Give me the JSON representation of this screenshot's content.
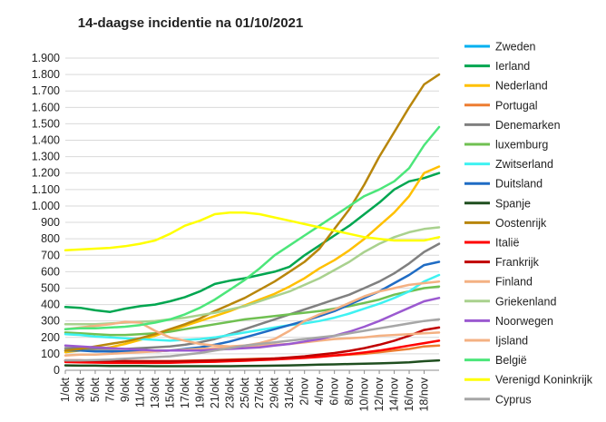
{
  "chart_data": {
    "type": "line",
    "title": "14-daagse incidentie na 01/10/2021",
    "xlabel": "",
    "ylabel": "",
    "ylim": [
      0,
      1900
    ],
    "yticks": [
      0,
      100,
      200,
      300,
      400,
      500,
      600,
      700,
      800,
      900,
      1000,
      1100,
      1200,
      1300,
      1400,
      1500,
      1600,
      1700,
      1800,
      1900
    ],
    "ytick_labels": [
      "0",
      "100",
      "200",
      "300",
      "400",
      "500",
      "600",
      "700",
      "800",
      "900",
      "1.000",
      "1.100",
      "1.200",
      "1.300",
      "1.400",
      "1.500",
      "1.600",
      "1.700",
      "1.800",
      "1.900"
    ],
    "x_tick_labels": [
      "1/okt",
      "3/okt",
      "5/okt",
      "7/okt",
      "9/okt",
      "11/okt",
      "13/okt",
      "15/okt",
      "17/okt",
      "19/okt",
      "21/okt",
      "23/okt",
      "25/okt",
      "27/okt",
      "29/okt",
      "31/okt",
      "2/nov",
      "4/nov",
      "6/nov",
      "8/nov",
      "10/nov",
      "12/nov",
      "14/nov",
      "16/nov",
      "18/nov"
    ],
    "x": [
      "1/okt",
      "3/okt",
      "5/okt",
      "7/okt",
      "9/okt",
      "11/okt",
      "13/okt",
      "15/okt",
      "17/okt",
      "19/okt",
      "21/okt",
      "23/okt",
      "25/okt",
      "27/okt",
      "29/okt",
      "31/okt",
      "2/nov",
      "4/nov",
      "6/nov",
      "8/nov",
      "10/nov",
      "12/nov",
      "14/nov",
      "16/nov",
      "18/nov",
      "19/nov"
    ],
    "grid": true,
    "legend_position": "right",
    "series": [
      {
        "name": "Zweden",
        "color": "#00B0F0",
        "values": [
          null,
          null,
          null,
          null,
          null,
          null,
          null,
          null,
          null,
          null,
          null,
          null,
          null,
          null,
          null,
          null,
          null,
          null,
          null,
          null,
          null,
          null,
          null,
          null,
          null,
          null
        ]
      },
      {
        "name": "Ierland",
        "color": "#00A650",
        "values": [
          385,
          380,
          365,
          355,
          375,
          390,
          400,
          420,
          445,
          480,
          525,
          545,
          560,
          580,
          600,
          630,
          700,
          760,
          820,
          880,
          950,
          1020,
          1100,
          1150,
          1170,
          1200
        ]
      },
      {
        "name": "Nederland",
        "color": "#FFC000",
        "values": [
          110,
          120,
          130,
          140,
          160,
          185,
          210,
          240,
          270,
          300,
          330,
          360,
          395,
          430,
          465,
          510,
          560,
          620,
          670,
          730,
          800,
          880,
          960,
          1060,
          1200,
          1240
        ]
      },
      {
        "name": "Portugal",
        "color": "#ED7D31",
        "values": [
          60,
          60,
          58,
          55,
          55,
          55,
          55,
          55,
          58,
          60,
          62,
          65,
          68,
          70,
          72,
          75,
          80,
          85,
          90,
          95,
          100,
          110,
          120,
          130,
          145,
          150
        ]
      },
      {
        "name": "Denemarken",
        "color": "#808080",
        "values": [
          135,
          135,
          130,
          130,
          130,
          135,
          140,
          145,
          155,
          170,
          190,
          220,
          250,
          280,
          310,
          340,
          370,
          400,
          430,
          460,
          500,
          540,
          590,
          650,
          720,
          770
        ]
      },
      {
        "name": "luxemburg",
        "color": "#70C052",
        "values": [
          230,
          225,
          220,
          215,
          215,
          220,
          225,
          235,
          250,
          265,
          280,
          295,
          310,
          320,
          330,
          340,
          350,
          360,
          375,
          390,
          410,
          430,
          460,
          480,
          500,
          510
        ]
      },
      {
        "name": "Zwitserland",
        "color": "#3FF2F2",
        "values": [
          220,
          215,
          205,
          200,
          195,
          190,
          185,
          180,
          185,
          190,
          200,
          215,
          230,
          245,
          260,
          275,
          285,
          300,
          320,
          345,
          375,
          405,
          440,
          480,
          540,
          580
        ]
      },
      {
        "name": "Duitsland",
        "color": "#1F6CC4",
        "values": [
          120,
          120,
          115,
          115,
          115,
          115,
          115,
          120,
          130,
          140,
          155,
          175,
          200,
          225,
          250,
          275,
          300,
          330,
          360,
          400,
          440,
          480,
          530,
          580,
          640,
          660
        ]
      },
      {
        "name": "Spanje",
        "color": "#1F4E1F",
        "values": [
          30,
          28,
          28,
          26,
          26,
          26,
          25,
          25,
          25,
          25,
          25,
          25,
          26,
          27,
          28,
          30,
          32,
          34,
          36,
          38,
          40,
          42,
          45,
          48,
          55,
          60
        ]
      },
      {
        "name": "Oostenrijk",
        "color": "#B8860B",
        "values": [
          120,
          130,
          145,
          160,
          175,
          195,
          220,
          250,
          280,
          315,
          360,
          400,
          440,
          490,
          540,
          600,
          660,
          740,
          860,
          980,
          1130,
          1300,
          1450,
          1600,
          1740,
          1800
        ]
      },
      {
        "name": "Italië",
        "color": "#FF0000",
        "values": [
          50,
          48,
          47,
          45,
          45,
          45,
          45,
          46,
          48,
          50,
          52,
          55,
          58,
          62,
          66,
          70,
          75,
          82,
          90,
          98,
          108,
          120,
          135,
          150,
          165,
          180
        ]
      },
      {
        "name": "Frankrijk",
        "color": "#C00000",
        "values": [
          60,
          60,
          58,
          57,
          56,
          55,
          55,
          55,
          56,
          58,
          60,
          62,
          65,
          68,
          72,
          78,
          85,
          95,
          105,
          118,
          135,
          155,
          180,
          210,
          245,
          260
        ]
      },
      {
        "name": "Finland",
        "color": "#F4B183",
        "values": [
          90,
          95,
          95,
          100,
          105,
          110,
          115,
          120,
          125,
          130,
          135,
          140,
          145,
          150,
          155,
          160,
          170,
          180,
          190,
          195,
          200,
          210,
          215,
          220,
          225,
          230
        ]
      },
      {
        "name": "Griekenland",
        "color": "#A9D18E",
        "values": [
          280,
          280,
          280,
          285,
          290,
          295,
          300,
          310,
          320,
          335,
          350,
          370,
          390,
          420,
          450,
          480,
          520,
          560,
          610,
          660,
          720,
          770,
          810,
          840,
          860,
          870
        ]
      },
      {
        "name": "Noorwegen",
        "color": "#9B59D0",
        "values": [
          150,
          145,
          140,
          135,
          130,
          125,
          120,
          120,
          120,
          120,
          125,
          130,
          135,
          140,
          150,
          160,
          175,
          190,
          210,
          235,
          265,
          300,
          340,
          380,
          420,
          440
        ]
      },
      {
        "name": "Ijsland",
        "color": "#F4B183",
        "values": [
          250,
          260,
          270,
          280,
          295,
          290,
          240,
          200,
          180,
          160,
          150,
          145,
          150,
          165,
          190,
          240,
          300,
          340,
          370,
          410,
          450,
          480,
          500,
          520,
          530,
          540
        ]
      },
      {
        "name": "België",
        "color": "#4CE67A",
        "values": [
          250,
          255,
          255,
          260,
          265,
          275,
          290,
          310,
          340,
          380,
          430,
          490,
          550,
          620,
          700,
          760,
          820,
          880,
          940,
          1000,
          1060,
          1100,
          1150,
          1230,
          1370,
          1480
        ]
      },
      {
        "name": "Verenigd Koninkrijk",
        "color": "#FFFF00",
        "values": [
          730,
          735,
          740,
          745,
          755,
          770,
          790,
          830,
          880,
          910,
          950,
          960,
          960,
          950,
          930,
          910,
          890,
          870,
          850,
          830,
          810,
          800,
          790,
          790,
          790,
          810
        ]
      },
      {
        "name": "Cyprus",
        "color": "#A6A6A6",
        "values": [
          60,
          60,
          62,
          65,
          70,
          75,
          80,
          85,
          95,
          105,
          120,
          135,
          150,
          160,
          170,
          180,
          190,
          200,
          210,
          225,
          240,
          255,
          270,
          285,
          300,
          310
        ]
      }
    ]
  }
}
